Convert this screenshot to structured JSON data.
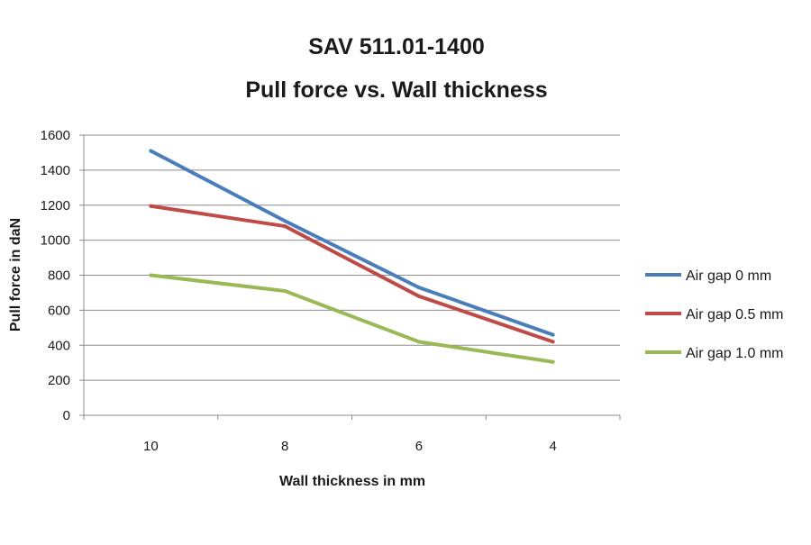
{
  "chart_data": {
    "type": "line",
    "title": "SAV 511.01-1400",
    "subtitle": "Pull force vs. Wall thickness",
    "xlabel": "Wall thickness in mm",
    "ylabel": "Pull force in daN",
    "categories": [
      "10",
      "8",
      "6",
      "4"
    ],
    "ylim": [
      0,
      1600
    ],
    "yticks": [
      0,
      200,
      400,
      600,
      800,
      1000,
      1200,
      1400,
      1600
    ],
    "grid": true,
    "legend": "right",
    "series": [
      {
        "name": "Air gap 0 mm",
        "color": "#4a7ebb",
        "values": [
          1510,
          1110,
          730,
          460
        ]
      },
      {
        "name": "Air gap 0.5 mm",
        "color": "#be4b48",
        "values": [
          1195,
          1080,
          680,
          420
        ]
      },
      {
        "name": "Air gap 1.0 mm",
        "color": "#98b954",
        "values": [
          800,
          710,
          420,
          305
        ]
      }
    ]
  }
}
